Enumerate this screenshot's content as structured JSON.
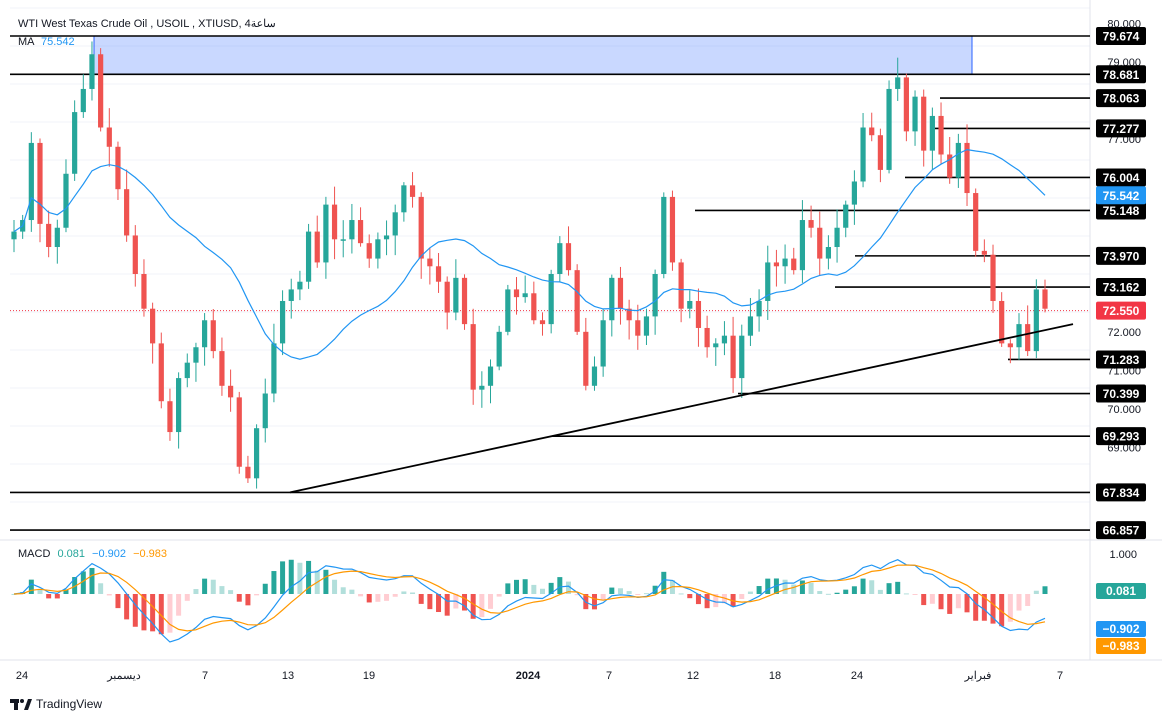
{
  "header": {
    "title": "WTI West Texas Crude Oil , USOIL , XTIUSD, 4ساعة",
    "ma_label": "MA",
    "ma_value": "75.542",
    "macd_label": "MACD",
    "macd_values": [
      "0.081",
      "−0.902",
      "−0.983"
    ]
  },
  "brand": "TradingView",
  "colors": {
    "up": "#26a69a",
    "down": "#ef5350",
    "ma": "#2196f3",
    "macd": "#2196f3",
    "signal": "#ff9800",
    "zone": "#2962ff",
    "current": "#f23645"
  },
  "chart_data": {
    "type": "candlestick",
    "title": "WTI West Texas Crude Oil , USOIL , XTIUSD, 4ساعة",
    "symbol": "XTIUSD",
    "timeframe": "4H",
    "ylim": [
      66.6,
      80.4
    ],
    "price_ticks": [
      "80.000",
      "79.000",
      "77.000",
      "72.000",
      "71.000",
      "70.000",
      "69.000"
    ],
    "x_ticks": [
      "24",
      "ديسمبر",
      "7",
      "13",
      "19",
      "2024",
      "7",
      "12",
      "18",
      "24",
      "فبراير",
      "7"
    ],
    "levels": [
      {
        "value": 79.674,
        "label": "79.674",
        "style": "full"
      },
      {
        "value": 78.681,
        "label": "78.681",
        "style": "full"
      },
      {
        "value": 78.063,
        "label": "78.063",
        "style": "segment"
      },
      {
        "value": 77.277,
        "label": "77.277",
        "style": "segment"
      },
      {
        "value": 76.004,
        "label": "76.004",
        "style": "segment"
      },
      {
        "value": 75.148,
        "label": "75.148",
        "style": "segment"
      },
      {
        "value": 73.97,
        "label": "73.970",
        "style": "segment"
      },
      {
        "value": 73.162,
        "label": "73.162",
        "style": "segment"
      },
      {
        "value": 71.283,
        "label": "71.283",
        "style": "segment"
      },
      {
        "value": 70.399,
        "label": "70.399",
        "style": "segment"
      },
      {
        "value": 69.293,
        "label": "69.293",
        "style": "segment"
      },
      {
        "value": 67.834,
        "label": "67.834",
        "style": "full"
      },
      {
        "value": 66.857,
        "label": "66.857",
        "style": "full"
      }
    ],
    "current_price": {
      "value": 72.55,
      "label": "72.550"
    },
    "ma_value": {
      "value": 75.542,
      "label": "75.542"
    },
    "resistance_zone": {
      "top": 79.674,
      "bottom": 78.681
    },
    "trendline": {
      "from_price": 67.834,
      "to_price": 72.2
    },
    "close_path": [
      74.6,
      74.9,
      76.9,
      74.8,
      74.2,
      74.7,
      76.1,
      77.7,
      78.3,
      79.2,
      77.3,
      76.8,
      75.7,
      74.5,
      73.5,
      72.6,
      71.7,
      70.2,
      69.4,
      70.8,
      71.2,
      71.6,
      72.3,
      71.5,
      70.6,
      70.3,
      68.5,
      68.2,
      69.5,
      70.4,
      71.7,
      72.8,
      73.1,
      73.3,
      74.6,
      73.8,
      75.3,
      74.4,
      74.4,
      74.9,
      74.3,
      73.9,
      74.4,
      74.5,
      75.1,
      75.8,
      75.5,
      73.9,
      73.7,
      73.3,
      72.5,
      73.4,
      72.2,
      70.5,
      70.6,
      71.1,
      72.0,
      73.1,
      72.9,
      73.0,
      72.3,
      72.2,
      73.5,
      74.3,
      73.6,
      72.0,
      70.6,
      71.1,
      72.3,
      73.4,
      72.6,
      72.3,
      71.9,
      72.4,
      73.5,
      75.5,
      73.8,
      72.6,
      72.8,
      72.1,
      71.6,
      71.7,
      71.9,
      70.8,
      71.9,
      72.4,
      72.8,
      73.8,
      73.7,
      73.9,
      73.6,
      74.9,
      74.7,
      73.9,
      74.2,
      74.7,
      75.3,
      75.9,
      77.3,
      77.1,
      76.2,
      78.3,
      78.6,
      77.2,
      78.1,
      76.7,
      77.6,
      76.6,
      76.0,
      76.9,
      75.6,
      74.1,
      74.0,
      72.8,
      71.7,
      71.6,
      72.2,
      71.5,
      73.1,
      72.6
    ],
    "macd_ticks": [
      "1.000"
    ],
    "macd_current": {
      "macd": "0.081",
      "signal_a": "−0.902",
      "signal_b": "−0.983"
    }
  }
}
